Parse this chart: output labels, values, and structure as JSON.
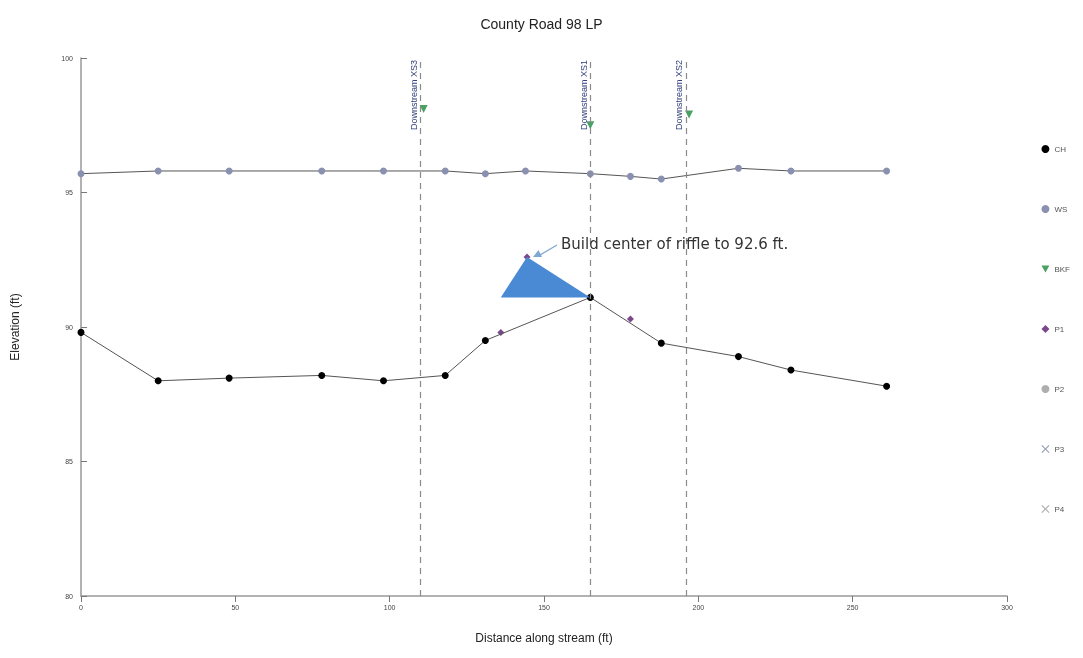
{
  "chart_data": {
    "type": "line",
    "title": "County Road 98 LP",
    "xlabel": "Distance along stream (ft)",
    "ylabel": "Elevation (ft)",
    "xlim": [
      0,
      300
    ],
    "xticks": [
      0,
      50,
      100,
      150,
      200,
      250,
      300
    ],
    "ylim": [
      80,
      100
    ],
    "yticks": [
      80,
      85,
      90,
      95,
      100
    ],
    "grid": false,
    "legend": "right",
    "series": [
      {
        "name": "CH",
        "type": "line",
        "color": "#000000",
        "marker": "circle",
        "x": [
          0,
          25,
          48,
          78,
          98,
          118,
          131,
          165,
          188,
          213,
          230,
          261
        ],
        "values": [
          89.8,
          88.0,
          88.1,
          88.2,
          88.0,
          88.2,
          89.5,
          91.1,
          89.4,
          88.9,
          88.4,
          87.8
        ]
      },
      {
        "name": "WS",
        "type": "line",
        "color": "#8a90b0",
        "marker": "circle",
        "x": [
          0,
          25,
          48,
          78,
          98,
          118,
          131,
          144,
          165,
          178,
          188,
          213,
          230,
          261
        ],
        "values": [
          95.7,
          95.8,
          95.8,
          95.8,
          95.8,
          95.8,
          95.7,
          95.8,
          95.7,
          95.6,
          95.5,
          95.9,
          95.8,
          95.8
        ]
      },
      {
        "name": "BKF",
        "type": "scatter",
        "color": "#1e8a3c",
        "marker": "triangle",
        "x": [
          111,
          165,
          197
        ],
        "values": [
          98.1,
          97.5,
          97.9
        ]
      },
      {
        "name": "P1",
        "type": "scatter",
        "color": "#5a1a6e",
        "marker": "diamond",
        "x": [
          136,
          144.5,
          178
        ],
        "values": [
          89.8,
          92.6,
          90.3
        ]
      },
      {
        "name": "P2",
        "type": "scatter",
        "color": "#9a9a9a",
        "marker": "circle"
      },
      {
        "name": "P3",
        "type": "scatter",
        "color": "#7a8aa0",
        "marker": "cross"
      },
      {
        "name": "P4",
        "type": "scatter",
        "color": "#9a9a9a",
        "marker": "cross"
      }
    ],
    "ref_lines": [
      {
        "axis": "x",
        "value": 110,
        "label": "Downstream XS3",
        "color": "#8a8a8a",
        "line_style": "dashed"
      },
      {
        "axis": "x",
        "value": 165,
        "label": "Downstream XS1",
        "color": "#8a8a8a",
        "line_style": "dashed"
      },
      {
        "axis": "x",
        "value": 196,
        "label": "Downstream XS2",
        "color": "#8a8a8a",
        "line_style": "dashed"
      }
    ],
    "annotations": [
      {
        "text": "Build center of riffle to 92.6 ft.",
        "x": 144.5,
        "y": 92.6
      }
    ]
  }
}
